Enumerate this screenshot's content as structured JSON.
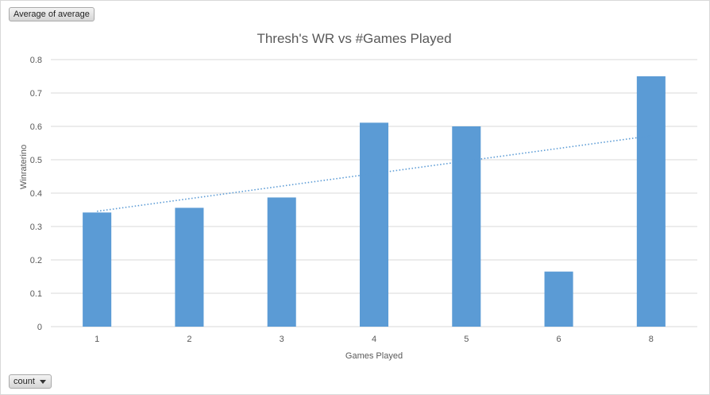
{
  "buttons": {
    "value_field": "Average of average",
    "axis_field": "count"
  },
  "colors": {
    "bar": "#5b9bd5",
    "trendline": "#5b9bd5",
    "gridline": "#d9d9d9",
    "text": "#595959"
  },
  "chart_data": {
    "type": "bar",
    "title": "Thresh's WR vs #Games Played",
    "xlabel": "Games Played",
    "ylabel": "Winraterino",
    "categories": [
      "1",
      "2",
      "3",
      "4",
      "5",
      "6",
      "8"
    ],
    "values": [
      0.342,
      0.356,
      0.387,
      0.611,
      0.6,
      0.165,
      0.75
    ],
    "ylim": [
      0,
      0.8
    ],
    "yticks": [
      "0",
      "0.1",
      "0.2",
      "0.3",
      "0.4",
      "0.5",
      "0.6",
      "0.7",
      "0.8"
    ],
    "grid": true,
    "legend": "none",
    "trendline": {
      "type": "linear",
      "style": "dotted"
    }
  }
}
